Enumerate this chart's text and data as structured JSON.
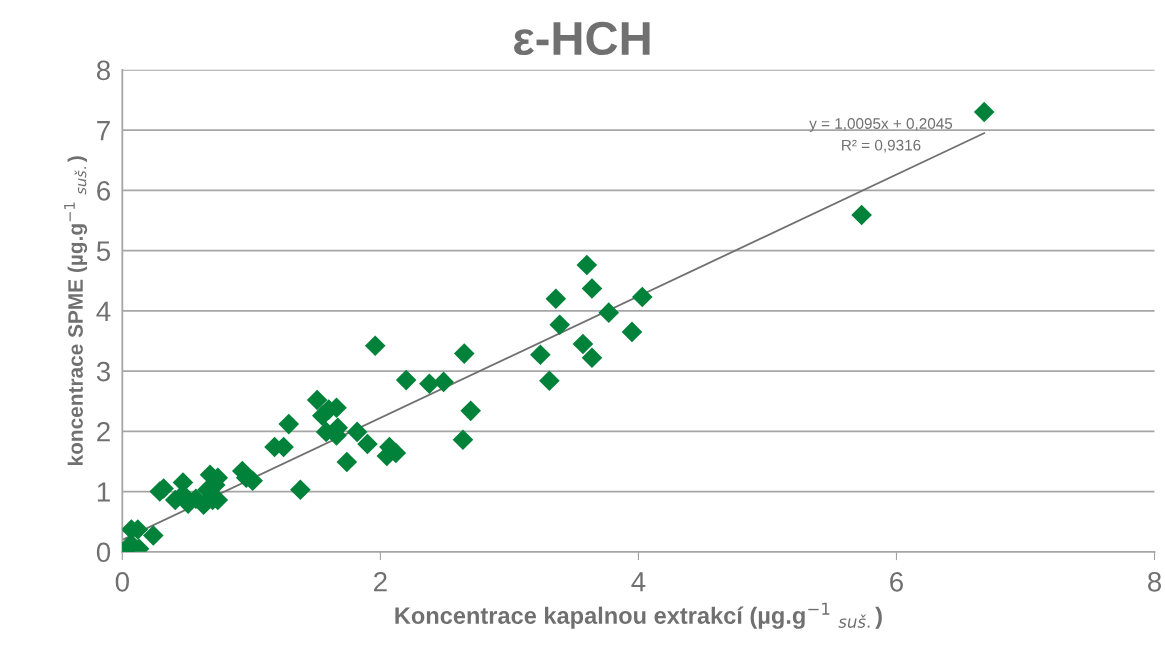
{
  "chart_data": {
    "type": "scatter",
    "title": "ε-HCH",
    "xlabel": "Koncentrace kapalnou extrakcí (µg.g$^{−1}$ $_{suš.}$)",
    "ylabel": "koncentrace SPME (µg.g$^{−1}$ $_{suš.}$)",
    "series": [
      {
        "color": "#00823a",
        "marker": "diamond",
        "x": [
          0,
          0.04,
          0.07,
          0.12,
          0.13,
          0.24,
          0.07,
          0.29,
          0.32,
          0.41,
          0.47,
          0.47,
          0.51,
          0.57,
          0.63,
          0.66,
          0.68,
          0.72,
          0.74,
          0.74,
          0.7,
          0.93,
          0.96,
          1.01,
          1.18,
          1.25,
          1.29,
          1.38,
          1.51,
          1.55,
          1.6,
          1.58,
          1.66,
          1.67,
          1.66,
          1.74,
          1.82,
          1.9,
          1.96,
          2.07,
          2.05,
          2.12,
          2.2,
          2.38,
          2.49,
          2.65,
          2.64,
          2.7,
          3.24,
          3.31,
          3.36,
          3.39,
          3.57,
          3.6,
          3.64,
          3.64,
          3.77,
          3.95,
          4.03,
          5.73,
          6.68
        ],
        "values": [
          0,
          0.07,
          0.37,
          0.37,
          0.05,
          0.27,
          0.12,
          1.0,
          1.05,
          0.86,
          1.15,
          0.95,
          0.8,
          0.88,
          0.78,
          1.03,
          1.28,
          1.11,
          1.23,
          0.86,
          0.86,
          1.34,
          1.23,
          1.18,
          1.74,
          1.74,
          2.12,
          1.03,
          2.52,
          2.26,
          2.36,
          1.99,
          2.39,
          2.06,
          1.93,
          1.49,
          1.99,
          1.79,
          3.42,
          1.74,
          1.59,
          1.64,
          2.85,
          2.79,
          2.82,
          3.29,
          1.86,
          2.34,
          3.27,
          2.84,
          4.2,
          3.77,
          3.45,
          4.76,
          3.22,
          4.37,
          3.97,
          3.65,
          4.23,
          5.59,
          7.3
        ]
      },
      {
        "type": "line",
        "color": "#707070",
        "marker": "none",
        "line_style": "solid",
        "x": [
          0,
          6.68
        ],
        "values": [
          0.2,
          6.95
        ]
      }
    ],
    "annotations": [
      "y = 1,0095x + 0,2045",
      "R² = 0,9316"
    ],
    "xlim": [
      0,
      8
    ],
    "xticks": [
      0,
      2,
      4,
      6,
      8
    ],
    "ylim": [
      0,
      8
    ],
    "yticks": [
      0,
      1,
      2,
      3,
      4,
      5,
      6,
      7,
      8
    ],
    "grid": "y"
  }
}
